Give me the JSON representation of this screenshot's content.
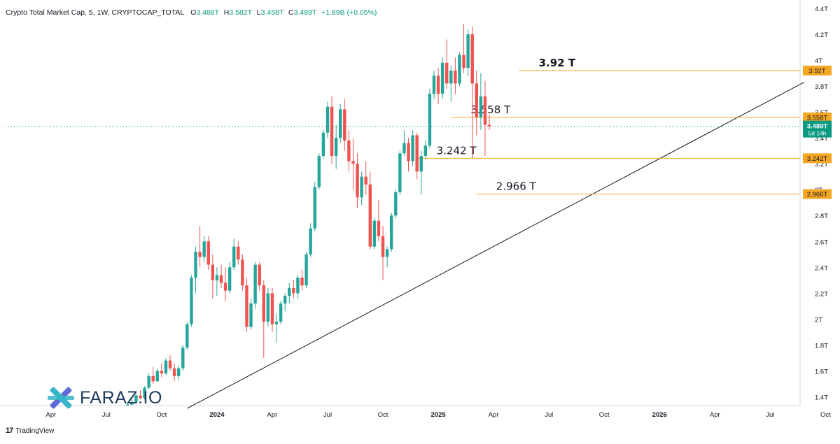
{
  "legend": {
    "symbol": "Crypto Total Market Cap, 5, 1W, CRYPTOCAP_TOTAL",
    "open_label": "O",
    "open": "3.488T",
    "high_label": "H",
    "high": "3.582T",
    "low_label": "L",
    "low": "3.458T",
    "close_label": "C",
    "close": "3.489T",
    "change": "+1.89B (+0.05%)"
  },
  "footer": {
    "logo": "17",
    "brand": "TradingView"
  },
  "watermark": {
    "text": "FARAZ.IO"
  },
  "colors": {
    "up": "#26a69a",
    "down": "#ef5350",
    "level": "#f5a623",
    "trend": "#131722",
    "current": "#089981"
  },
  "chart_data": {
    "type": "candlestick",
    "title": "Crypto Total Market Cap, 5, 1W, CRYPTOCAP_TOTAL",
    "ylim": [
      1.32,
      4.45
    ],
    "y_ticks": [
      1.4,
      1.6,
      1.8,
      2,
      2.2,
      2.4,
      2.6,
      2.8,
      3.0,
      3.2,
      3.4,
      3.6,
      3.8,
      4,
      4.2,
      4.4
    ],
    "y_tick_labels": [
      "1.4T",
      "1.6T",
      "1.8T",
      "2T",
      "2.2T",
      "2.4T",
      "2.6T",
      "2.8T",
      "3T",
      "3.2T",
      "3.4T",
      "3.6T",
      "3.8T",
      "4T",
      "4.2T",
      "4.4T"
    ],
    "x_tick_labels": [
      {
        "label": "Apr",
        "w": 20
      },
      {
        "label": "Jul",
        "w": 33
      },
      {
        "label": "Oct",
        "w": 46
      },
      {
        "label": "2024",
        "w": 59
      },
      {
        "label": "Apr",
        "w": 72
      },
      {
        "label": "Jul",
        "w": 85
      },
      {
        "label": "Oct",
        "w": 98
      },
      {
        "label": "2025",
        "w": 111
      },
      {
        "label": "Apr",
        "w": 124
      },
      {
        "label": "Jul",
        "w": 137
      },
      {
        "label": "Oct",
        "w": 150
      },
      {
        "label": "2026",
        "w": 163
      },
      {
        "label": "Apr",
        "w": 176
      },
      {
        "label": "Jul",
        "w": 189
      },
      {
        "label": "Oct",
        "w": 202
      }
    ],
    "levels": [
      {
        "value": 3.92,
        "annotation": "3.92 T",
        "axis_label": "3.92T",
        "start_w": 130
      },
      {
        "value": 3.558,
        "annotation": "3.558 T",
        "axis_label": "3.558T",
        "start_w": 114
      },
      {
        "value": 3.242,
        "annotation": "3.242 T",
        "axis_label": "3.242T",
        "start_w": 106
      },
      {
        "value": 2.966,
        "annotation": "2.966 T",
        "axis_label": "2.966T",
        "start_w": 120
      }
    ],
    "current_price": {
      "value": 3.489,
      "label": "3.489T",
      "countdown": "5d 14h"
    },
    "trendline": {
      "from": {
        "w": 52,
        "v": 1.31
      },
      "to": {
        "w": 197,
        "v": 3.83
      }
    },
    "candles_start_w": 37,
    "candles": [
      [
        1.29,
        1.33,
        1.27,
        1.32
      ],
      [
        1.32,
        1.36,
        1.3,
        1.34
      ],
      [
        1.34,
        1.38,
        1.32,
        1.36
      ],
      [
        1.36,
        1.42,
        1.35,
        1.41
      ],
      [
        1.41,
        1.45,
        1.38,
        1.39
      ],
      [
        1.39,
        1.48,
        1.38,
        1.47
      ],
      [
        1.47,
        1.58,
        1.46,
        1.56
      ],
      [
        1.56,
        1.63,
        1.5,
        1.52
      ],
      [
        1.52,
        1.62,
        1.51,
        1.6
      ],
      [
        1.6,
        1.66,
        1.55,
        1.58
      ],
      [
        1.58,
        1.7,
        1.57,
        1.68
      ],
      [
        1.68,
        1.72,
        1.6,
        1.62
      ],
      [
        1.62,
        1.66,
        1.52,
        1.56
      ],
      [
        1.56,
        1.64,
        1.53,
        1.62
      ],
      [
        1.62,
        1.8,
        1.6,
        1.78
      ],
      [
        1.78,
        1.98,
        1.76,
        1.96
      ],
      [
        1.96,
        2.34,
        1.94,
        2.32
      ],
      [
        2.32,
        2.56,
        2.2,
        2.52
      ],
      [
        2.52,
        2.72,
        2.4,
        2.48
      ],
      [
        2.48,
        2.64,
        2.44,
        2.6
      ],
      [
        2.6,
        2.64,
        2.38,
        2.42
      ],
      [
        2.42,
        2.5,
        2.16,
        2.3
      ],
      [
        2.3,
        2.4,
        2.18,
        2.34
      ],
      [
        2.34,
        2.42,
        2.24,
        2.28
      ],
      [
        2.28,
        2.4,
        2.14,
        2.22
      ],
      [
        2.22,
        2.44,
        2.2,
        2.4
      ],
      [
        2.4,
        2.62,
        2.38,
        2.56
      ],
      [
        2.56,
        2.6,
        2.42,
        2.46
      ],
      [
        2.46,
        2.5,
        2.22,
        2.26
      ],
      [
        2.26,
        2.32,
        1.9,
        1.94
      ],
      [
        1.94,
        2.16,
        1.92,
        2.12
      ],
      [
        2.12,
        2.44,
        2.08,
        2.42
      ],
      [
        2.42,
        2.44,
        2.22,
        2.26
      ],
      [
        2.26,
        2.3,
        1.7,
        1.98
      ],
      [
        1.98,
        2.24,
        1.94,
        2.2
      ],
      [
        2.2,
        2.24,
        1.9,
        1.96
      ],
      [
        1.96,
        2.04,
        1.82,
        1.98
      ],
      [
        1.98,
        2.14,
        1.96,
        2.12
      ],
      [
        2.12,
        2.2,
        2.06,
        2.18
      ],
      [
        2.18,
        2.28,
        2.12,
        2.24
      ],
      [
        2.24,
        2.3,
        2.16,
        2.2
      ],
      [
        2.2,
        2.34,
        2.16,
        2.32
      ],
      [
        2.32,
        2.38,
        2.22,
        2.26
      ],
      [
        2.26,
        2.52,
        2.24,
        2.5
      ],
      [
        2.5,
        2.74,
        2.48,
        2.7
      ],
      [
        2.7,
        3.06,
        2.68,
        3.02
      ],
      [
        3.02,
        3.28,
        3.0,
        3.26
      ],
      [
        3.26,
        3.46,
        3.24,
        3.44
      ],
      [
        3.44,
        3.68,
        3.4,
        3.64
      ],
      [
        3.64,
        3.72,
        3.2,
        3.26
      ],
      [
        3.26,
        3.5,
        3.16,
        3.4
      ],
      [
        3.4,
        3.66,
        3.36,
        3.62
      ],
      [
        3.62,
        3.7,
        3.3,
        3.38
      ],
      [
        3.38,
        3.46,
        3.14,
        3.22
      ],
      [
        3.22,
        3.4,
        3.0,
        3.2
      ],
      [
        3.2,
        3.28,
        2.86,
        2.94
      ],
      [
        2.94,
        3.14,
        2.88,
        3.1
      ],
      [
        3.1,
        3.22,
        2.96,
        3.04
      ],
      [
        3.04,
        3.14,
        2.54,
        2.56
      ],
      [
        2.56,
        2.78,
        2.54,
        2.76
      ],
      [
        2.76,
        2.92,
        2.6,
        2.64
      ],
      [
        2.64,
        2.72,
        2.3,
        2.48
      ],
      [
        2.48,
        2.56,
        2.4,
        2.54
      ],
      [
        2.54,
        2.82,
        2.52,
        2.8
      ],
      [
        2.8,
        3.0,
        2.78,
        2.98
      ],
      [
        2.98,
        3.3,
        2.96,
        3.28
      ],
      [
        3.28,
        3.46,
        3.26,
        3.36
      ],
      [
        3.36,
        3.4,
        3.14,
        3.22
      ],
      [
        3.22,
        3.46,
        3.18,
        3.42
      ],
      [
        3.42,
        3.44,
        3.08,
        3.14
      ],
      [
        3.14,
        3.3,
        2.96,
        3.26
      ],
      [
        3.26,
        3.38,
        3.24,
        3.34
      ],
      [
        3.34,
        3.78,
        3.32,
        3.74
      ],
      [
        3.74,
        3.92,
        3.7,
        3.88
      ],
      [
        3.88,
        3.94,
        3.66,
        3.74
      ],
      [
        3.74,
        4.02,
        3.7,
        3.98
      ],
      [
        3.98,
        4.16,
        3.78,
        3.82
      ],
      [
        3.82,
        3.96,
        3.68,
        3.92
      ],
      [
        3.92,
        4.02,
        3.74,
        3.82
      ],
      [
        3.82,
        4.06,
        3.8,
        4.04
      ],
      [
        4.04,
        4.28,
        3.9,
        3.94
      ],
      [
        3.94,
        4.24,
        3.88,
        4.2
      ],
      [
        4.2,
        4.26,
        3.24,
        3.82
      ],
      [
        3.82,
        3.92,
        3.42,
        3.56
      ],
      [
        3.56,
        3.9,
        3.46,
        3.72
      ],
      [
        3.72,
        3.84,
        3.26,
        3.5
      ],
      [
        3.5,
        3.58,
        3.46,
        3.49
      ]
    ]
  }
}
